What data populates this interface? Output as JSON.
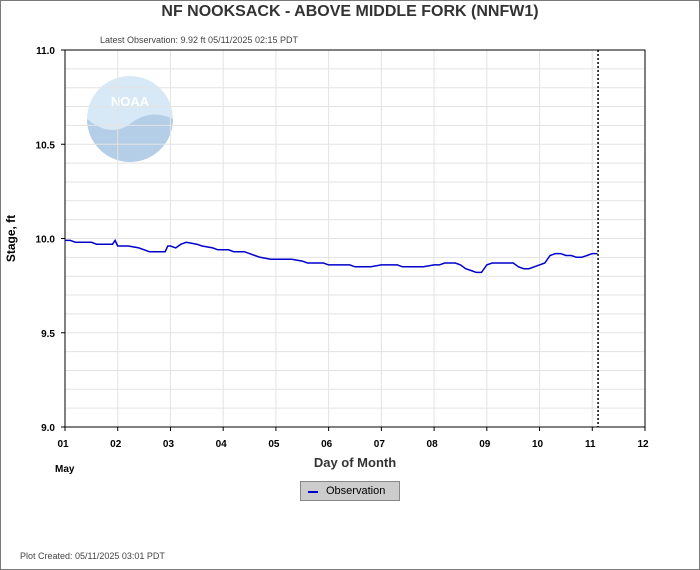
{
  "title": "NF NOOKSACK - ABOVE MIDDLE FORK  (NNFW1)",
  "latest_observation": "Latest Observation: 9.92 ft 05/11/2025 02:15 PDT",
  "plot_created": "Plot Created: 05/11/2025 03:01 PDT",
  "logo_text": "NOAA",
  "chart_data": {
    "type": "line",
    "xlabel": "Day of Month",
    "ylabel": "Stage, ft",
    "month_label": "May",
    "xlim": [
      1,
      12
    ],
    "ylim": [
      9.0,
      11.0
    ],
    "x_ticks": [
      "01",
      "02",
      "03",
      "04",
      "05",
      "06",
      "07",
      "08",
      "09",
      "10",
      "11",
      "12"
    ],
    "y_ticks": [
      "9.0",
      "9.5",
      "10.0",
      "10.5",
      "11.0"
    ],
    "grid": true,
    "legend": "bottom-center",
    "current_time_marker": 11.11,
    "series": [
      {
        "name": "Observation",
        "color": "#0000cc",
        "x": [
          1.0,
          1.1,
          1.2,
          1.4,
          1.5,
          1.6,
          1.7,
          1.8,
          1.9,
          1.95,
          2.0,
          2.1,
          2.2,
          2.4,
          2.5,
          2.6,
          2.7,
          2.8,
          2.9,
          2.95,
          3.0,
          3.1,
          3.2,
          3.3,
          3.5,
          3.6,
          3.8,
          3.9,
          4.0,
          4.1,
          4.2,
          4.4,
          4.5,
          4.6,
          4.7,
          4.9,
          5.0,
          5.2,
          5.3,
          5.5,
          5.6,
          5.7,
          5.8,
          5.9,
          6.0,
          6.2,
          6.4,
          6.5,
          6.6,
          6.8,
          7.0,
          7.1,
          7.3,
          7.4,
          7.6,
          7.8,
          8.0,
          8.1,
          8.2,
          8.3,
          8.4,
          8.5,
          8.6,
          8.7,
          8.8,
          8.9,
          9.0,
          9.1,
          9.3,
          9.5,
          9.6,
          9.7,
          9.8,
          9.9,
          10.0,
          10.1,
          10.2,
          10.3,
          10.4,
          10.5,
          10.6,
          10.7,
          10.8,
          10.9,
          11.0,
          11.1
        ],
        "y": [
          9.99,
          9.99,
          9.98,
          9.98,
          9.98,
          9.97,
          9.97,
          9.97,
          9.97,
          9.99,
          9.96,
          9.96,
          9.96,
          9.95,
          9.94,
          9.93,
          9.93,
          9.93,
          9.93,
          9.96,
          9.96,
          9.95,
          9.97,
          9.98,
          9.97,
          9.96,
          9.95,
          9.94,
          9.94,
          9.94,
          9.93,
          9.93,
          9.92,
          9.91,
          9.9,
          9.89,
          9.89,
          9.89,
          9.89,
          9.88,
          9.87,
          9.87,
          9.87,
          9.87,
          9.86,
          9.86,
          9.86,
          9.85,
          9.85,
          9.85,
          9.86,
          9.86,
          9.86,
          9.85,
          9.85,
          9.85,
          9.86,
          9.86,
          9.87,
          9.87,
          9.87,
          9.86,
          9.84,
          9.83,
          9.82,
          9.82,
          9.86,
          9.87,
          9.87,
          9.87,
          9.85,
          9.84,
          9.84,
          9.85,
          9.86,
          9.87,
          9.91,
          9.92,
          9.92,
          9.91,
          9.91,
          9.9,
          9.9,
          9.91,
          9.92,
          9.92
        ]
      }
    ]
  }
}
